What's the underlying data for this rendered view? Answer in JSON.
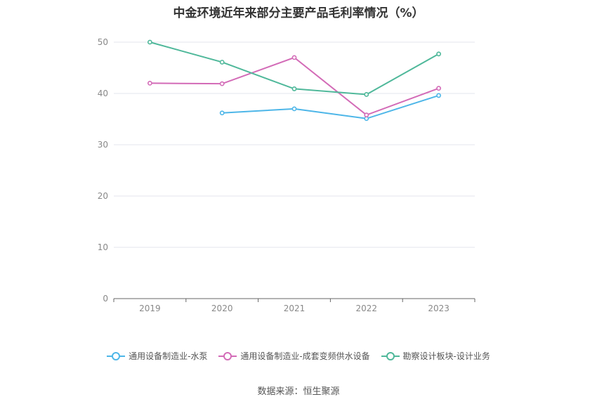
{
  "chart_data": {
    "type": "line",
    "title": "中金环境近年来部分主要产品毛利率情况（%）",
    "categories": [
      "2019",
      "2020",
      "2021",
      "2022",
      "2023"
    ],
    "ylim": [
      0,
      50
    ],
    "yticks": [
      "0",
      "10",
      "20",
      "30",
      "40",
      "50"
    ],
    "grid": true,
    "legend_position": "bottom",
    "series": [
      {
        "name": "通用设备制造业-水泵",
        "color": "#4db6e8",
        "values": [
          null,
          36.2,
          37.0,
          35.1,
          39.6
        ]
      },
      {
        "name": "通用设备制造业-成套变频供水设备",
        "color": "#d36bb7",
        "values": [
          42.0,
          41.9,
          47.0,
          35.8,
          41.0
        ]
      },
      {
        "name": "勘察设计板块-设计业务",
        "color": "#4fb89a",
        "values": [
          50.0,
          46.1,
          40.9,
          39.8,
          47.7
        ]
      }
    ]
  },
  "source": "数据来源：恒生聚源"
}
